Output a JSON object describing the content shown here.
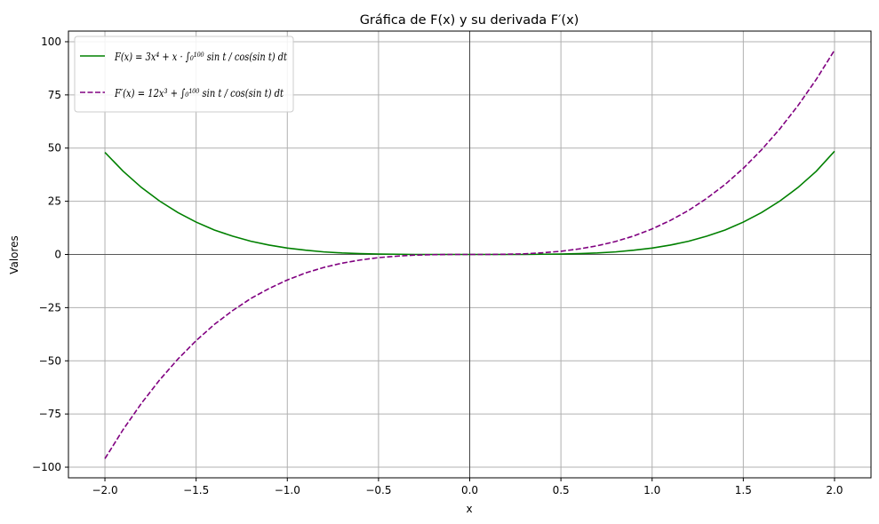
{
  "chart_data": {
    "type": "line",
    "title": "Gráfica de F(x) y su derivada F′(x)",
    "xlabel": "x",
    "ylabel": "Valores",
    "xlim": [
      -2.2,
      2.2
    ],
    "ylim": [
      -105,
      105
    ],
    "x_ticks": [
      -2.0,
      -1.5,
      -1.0,
      -0.5,
      0.0,
      0.5,
      1.0,
      1.5,
      2.0
    ],
    "x_tick_labels": [
      "−2.0",
      "−1.5",
      "−1.0",
      "−0.5",
      "0.0",
      "0.5",
      "1.0",
      "1.5",
      "2.0"
    ],
    "y_ticks": [
      -100,
      -75,
      -50,
      -25,
      0,
      25,
      50,
      75,
      100
    ],
    "y_tick_labels": [
      "−100",
      "−75",
      "−50",
      "−25",
      "0",
      "25",
      "50",
      "75",
      "100"
    ],
    "grid": true,
    "legend_position": "top-left",
    "reference_lines": {
      "x": 0,
      "y": 0,
      "color": "#000000"
    },
    "series": [
      {
        "name": "F(x) = 3x⁴ + x · ∫₀¹⁰⁰ sin t / cos(sin t) dt",
        "color": "#008000",
        "dash": "solid",
        "x": [
          -2.0,
          -1.9,
          -1.8,
          -1.7,
          -1.6,
          -1.5,
          -1.4,
          -1.3,
          -1.2,
          -1.1,
          -1.0,
          -0.9,
          -0.8,
          -0.7,
          -0.6,
          -0.5,
          -0.4,
          -0.3,
          -0.2,
          -0.1,
          0.0,
          0.1,
          0.2,
          0.3,
          0.4,
          0.5,
          0.6,
          0.7,
          0.8,
          0.9,
          1.0,
          1.1,
          1.2,
          1.3,
          1.4,
          1.5,
          1.6,
          1.7,
          1.8,
          1.9,
          2.0
        ],
        "y": [
          48.0,
          39.1,
          31.5,
          25.1,
          19.7,
          15.2,
          11.5,
          8.6,
          6.2,
          4.4,
          3.0,
          2.0,
          1.2,
          0.7,
          0.4,
          0.2,
          0.1,
          0.0,
          0.0,
          0.0,
          0.0,
          0.0,
          0.0,
          0.0,
          0.1,
          0.2,
          0.4,
          0.7,
          1.2,
          2.0,
          3.0,
          4.4,
          6.2,
          8.6,
          11.5,
          15.2,
          19.7,
          25.1,
          31.5,
          39.1,
          48.5
        ]
      },
      {
        "name": "F′(x) = 12x³ + ∫₀¹⁰⁰ sin t / cos(sin t) dt",
        "color": "#800080",
        "dash": "dashed",
        "x": [
          -2.0,
          -1.9,
          -1.8,
          -1.7,
          -1.6,
          -1.5,
          -1.4,
          -1.3,
          -1.2,
          -1.1,
          -1.0,
          -0.9,
          -0.8,
          -0.7,
          -0.6,
          -0.5,
          -0.4,
          -0.3,
          -0.2,
          -0.1,
          0.0,
          0.1,
          0.2,
          0.3,
          0.4,
          0.5,
          0.6,
          0.7,
          0.8,
          0.9,
          1.0,
          1.1,
          1.2,
          1.3,
          1.4,
          1.5,
          1.6,
          1.7,
          1.8,
          1.9,
          2.0
        ],
        "y": [
          -96.0,
          -82.3,
          -70.0,
          -59.0,
          -49.2,
          -40.5,
          -32.9,
          -26.4,
          -20.7,
          -16.0,
          -12.0,
          -8.7,
          -6.1,
          -4.1,
          -2.6,
          -1.5,
          -0.8,
          -0.3,
          -0.1,
          0.0,
          0.0,
          0.0,
          0.1,
          0.3,
          0.8,
          1.5,
          2.6,
          4.1,
          6.1,
          8.7,
          12.0,
          16.0,
          20.7,
          26.4,
          32.9,
          40.5,
          49.2,
          59.0,
          70.0,
          82.3,
          96.0
        ]
      }
    ]
  }
}
